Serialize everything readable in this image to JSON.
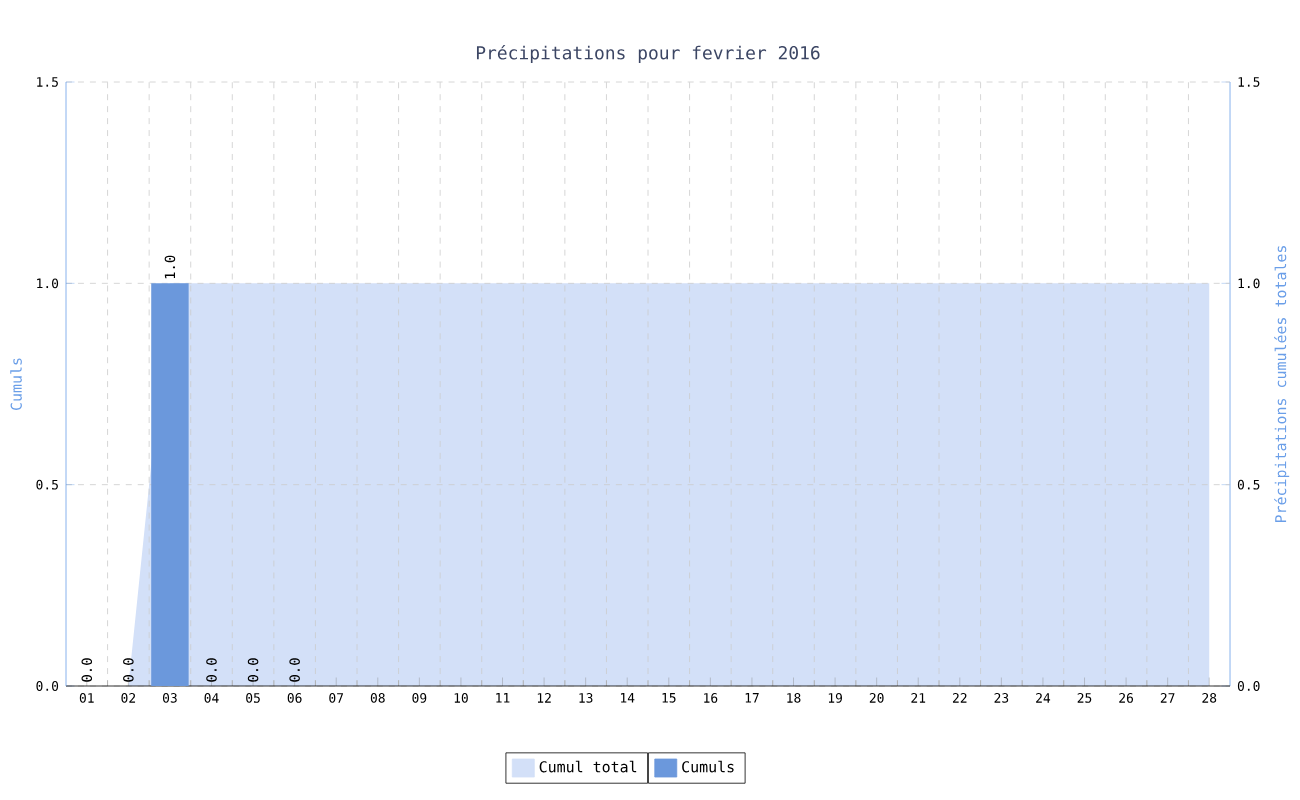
{
  "chart_data": {
    "type": "bar",
    "title": "Précipitations pour fevrier 2016",
    "ylabel": "Cumuls",
    "y2label": "Précipitations cumulées totales",
    "categories": [
      "01",
      "02",
      "03",
      "04",
      "05",
      "06",
      "07",
      "08",
      "09",
      "10",
      "11",
      "12",
      "13",
      "14",
      "15",
      "16",
      "17",
      "18",
      "19",
      "20",
      "21",
      "22",
      "23",
      "24",
      "25",
      "26",
      "27",
      "28"
    ],
    "series": [
      {
        "name": "Cumul total",
        "type": "area",
        "axis": "y2",
        "color": "#d3e0f8",
        "values": [
          0,
          0,
          1,
          1,
          1,
          1,
          1,
          1,
          1,
          1,
          1,
          1,
          1,
          1,
          1,
          1,
          1,
          1,
          1,
          1,
          1,
          1,
          1,
          1,
          1,
          1,
          1,
          1
        ]
      },
      {
        "name": "Cumuls",
        "color": "#6b98dc",
        "values": [
          0,
          0,
          1,
          0,
          0,
          0,
          null,
          null,
          null,
          null,
          null,
          null,
          null,
          null,
          null,
          null,
          null,
          null,
          null,
          null,
          null,
          null,
          null,
          null,
          null,
          null,
          null,
          null
        ],
        "value_labels": [
          "0.0",
          "0.0",
          "1.0",
          "0.0",
          "0.0",
          "0.0",
          null,
          null,
          null,
          null,
          null,
          null,
          null,
          null,
          null,
          null,
          null,
          null,
          null,
          null,
          null,
          null,
          null,
          null,
          null,
          null,
          null,
          null
        ]
      }
    ],
    "ylim": [
      0,
      1.5
    ],
    "yticks": [
      {
        "value": 0,
        "label": "0.0"
      },
      {
        "value": 0.5,
        "label": "0.5"
      },
      {
        "value": 1,
        "label": "1.0"
      },
      {
        "value": 1.5,
        "label": "1.5"
      }
    ],
    "y2lim": [
      0,
      1.5
    ],
    "y2ticks": [
      {
        "value": 0,
        "label": "0.0"
      },
      {
        "value": 0.5,
        "label": "0.5"
      },
      {
        "value": 1,
        "label": "1.0"
      },
      {
        "value": 1.5,
        "label": "1.5"
      }
    ],
    "grid": true,
    "legend": "bottom"
  }
}
